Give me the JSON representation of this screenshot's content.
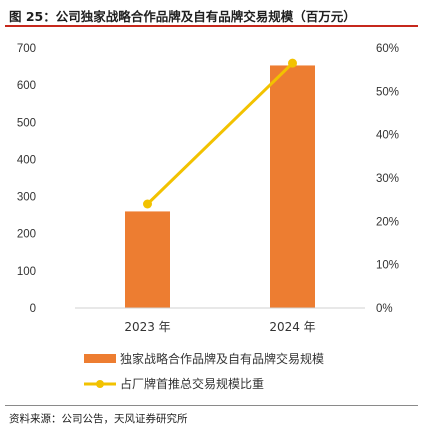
{
  "figure": {
    "title": "图 25：公司独家战略合作品牌及自有品牌交易规模（百万元）",
    "source": "资料来源：公司公告，天风证券研究所"
  },
  "chart_data": {
    "type": "bar",
    "categories": [
      "2023 年",
      "2024 年"
    ],
    "series": [
      {
        "name": "独家战略合作品牌及自有品牌交易规模",
        "type": "bar",
        "axis": "left",
        "values": [
          260,
          653
        ],
        "color": "#ed7d31"
      },
      {
        "name": "占厂牌首推总交易规模比重",
        "type": "line",
        "axis": "right",
        "values": [
          24.0,
          56.5
        ],
        "color": "#f2c200"
      }
    ],
    "y_left": {
      "ylim": [
        0,
        700
      ],
      "ticks": [
        "0",
        "100",
        "200",
        "300",
        "400",
        "500",
        "600",
        "700"
      ]
    },
    "y_right": {
      "ylim": [
        0,
        60
      ],
      "ticks": [
        "0%",
        "10%",
        "20%",
        "30%",
        "40%",
        "50%",
        "60%"
      ]
    },
    "grid": false,
    "legend_position": "bottom"
  }
}
